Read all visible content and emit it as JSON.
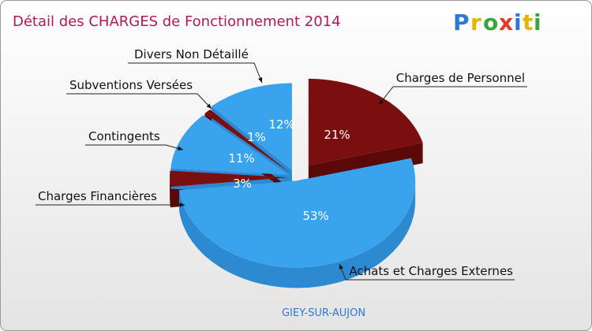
{
  "chart_data": {
    "type": "pie",
    "title": "Détail des CHARGES de Fonctionnement 2014",
    "subtitle": "GIEY-SUR-AUJON",
    "brand": "Proxiti",
    "slices": [
      {
        "name": "Charges de Personnel",
        "value": 21,
        "label": "21%",
        "color": "#7b0f0f"
      },
      {
        "name": "Achats et Charges Externes",
        "value": 53,
        "label": "53%",
        "color": "#3aa3ee"
      },
      {
        "name": "Charges Financières",
        "value": 3,
        "label": "3%",
        "color": "#7b0f0f"
      },
      {
        "name": "Contingents",
        "value": 11,
        "label": "11%",
        "color": "#3aa3ee"
      },
      {
        "name": "Subventions Versées",
        "value": 1,
        "label": "1%",
        "color": "#7b0f0f"
      },
      {
        "name": "Divers Non Détaillé",
        "value": 12,
        "label": "12%",
        "color": "#3aa3ee"
      }
    ]
  },
  "colors": {
    "title": "#b0185a",
    "subtitle": "#2f77d4",
    "side_blue": "#2e8ad0",
    "side_red": "#5a0808",
    "background": "#ffffff"
  }
}
